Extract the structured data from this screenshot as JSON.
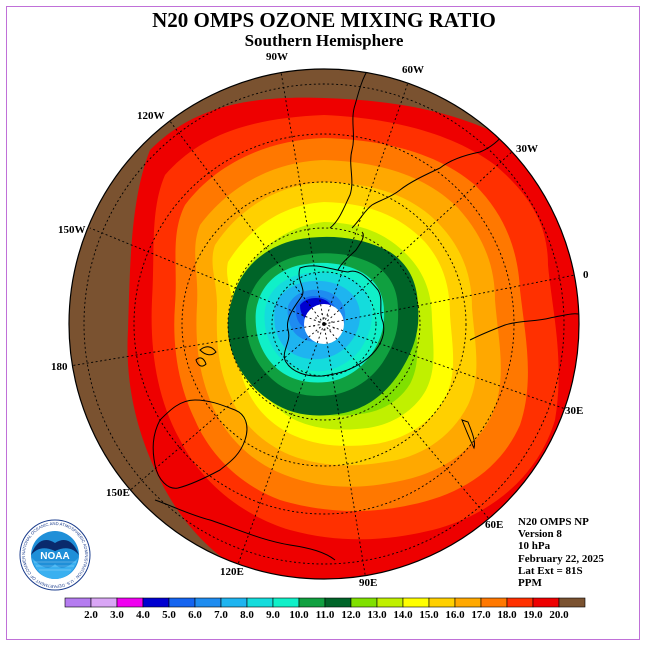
{
  "title": "N20 OMPS OZONE MIXING RATIO",
  "subtitle": "Southern Hemisphere",
  "longitude_labels": {
    "l90w": "90W",
    "l60w": "60W",
    "l120w": "120W",
    "l30w": "30W",
    "l150w": "150W",
    "l0": "0",
    "l180": "180",
    "l30e": "30E",
    "l150e": "150E",
    "l60e": "60E",
    "l120e": "120E",
    "l90e": "90E"
  },
  "info": {
    "product": "N20 OMPS NP",
    "version": "Version 8",
    "level": "10 hPa",
    "date": "February 22, 2025",
    "lat_ext": "Lat Ext = 81S",
    "units": "PPM"
  },
  "logo": {
    "text": "NOAA",
    "ring_text": "NATIONAL OCEANIC AND ATMOSPHERIC ADMINISTRATION · U.S. DEPARTMENT OF COMMERCE"
  },
  "colorbar": {
    "labels": [
      "2.0",
      "3.0",
      "4.0",
      "5.0",
      "6.0",
      "7.0",
      "8.0",
      "9.0",
      "10.0",
      "11.0",
      "12.0",
      "13.0",
      "14.0",
      "15.0",
      "16.0",
      "17.0",
      "18.0",
      "19.0",
      "20.0"
    ],
    "colors": [
      "#b57cf0",
      "#d9a6f5",
      "#f000f0",
      "#0000d0",
      "#1464f0",
      "#1e8cf0",
      "#1eb4f0",
      "#14dcdc",
      "#10f0c8",
      "#10a040",
      "#006428",
      "#80e000",
      "#c0f000",
      "#ffff00",
      "#ffd000",
      "#ffa800",
      "#ff7800",
      "#ff3000",
      "#ee0000",
      "#7a5230"
    ]
  },
  "map_colors": {
    "outside": "#7a5230",
    "level_20": "#ee0000",
    "level_19": "#ff3000",
    "level_18": "#ff7800",
    "level_17": "#ffa800",
    "level_16": "#ffd000",
    "level_15": "#ffff00",
    "level_14": "#c0f000",
    "level_13": "#80e000",
    "level_12": "#006428",
    "level_11": "#10a040",
    "level_10": "#10f0c8",
    "level_9": "#14dcdc",
    "level_8": "#1eb4f0",
    "level_7": "#1e8cf0",
    "level_6": "#1464f0",
    "level_5": "#0000d0"
  }
}
